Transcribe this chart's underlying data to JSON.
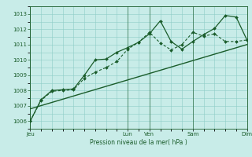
{
  "bg_color": "#c8ece8",
  "grid_color": "#8eccc6",
  "line_color": "#1a5c2a",
  "xlabel_text": "Pression niveau de la mer( hPa )",
  "x_tick_labels": [
    "Jeu",
    "",
    "Lun",
    "Ven",
    "",
    "Sam",
    "",
    "Dim"
  ],
  "x_tick_positions": [
    0,
    2.0,
    4.5,
    5.5,
    6.5,
    7.5,
    9.0,
    10.0
  ],
  "vert_line_positions": [
    0,
    4.5,
    5.5,
    7.5,
    10.0
  ],
  "ylim": [
    1005.5,
    1013.5
  ],
  "yticks": [
    1006,
    1007,
    1008,
    1009,
    1010,
    1011,
    1012,
    1013
  ],
  "series1_x": [
    0,
    0.5,
    1.0,
    1.5,
    2.0,
    2.5,
    3.0,
    3.5,
    4.0,
    4.5,
    5.0,
    5.5,
    6.0,
    6.5,
    7.0,
    7.5,
    8.0,
    8.5,
    9.0,
    9.5,
    10.0
  ],
  "series1_y": [
    1006.0,
    1007.4,
    1008.0,
    1008.05,
    1008.1,
    1009.0,
    1010.0,
    1010.05,
    1010.5,
    1010.8,
    1011.15,
    1011.7,
    1012.55,
    1011.2,
    1010.7,
    1011.2,
    1011.65,
    1012.05,
    1012.9,
    1012.8,
    1011.3
  ],
  "series2_x": [
    0,
    0.5,
    1.0,
    1.5,
    2.0,
    2.5,
    3.0,
    3.5,
    4.0,
    4.5,
    5.0,
    5.5,
    6.0,
    6.5,
    7.0,
    7.5,
    8.0,
    8.5,
    9.0,
    9.5,
    10.0
  ],
  "series2_y": [
    1006.0,
    1007.35,
    1007.95,
    1008.0,
    1008.05,
    1008.8,
    1009.2,
    1009.5,
    1009.9,
    1010.7,
    1011.15,
    1011.8,
    1011.1,
    1010.65,
    1011.0,
    1011.8,
    1011.55,
    1011.7,
    1011.2,
    1011.2,
    1011.3
  ],
  "trend_x": [
    0,
    10.0
  ],
  "trend_y": [
    1006.8,
    1011.0
  ],
  "xlim": [
    0,
    10.0
  ]
}
